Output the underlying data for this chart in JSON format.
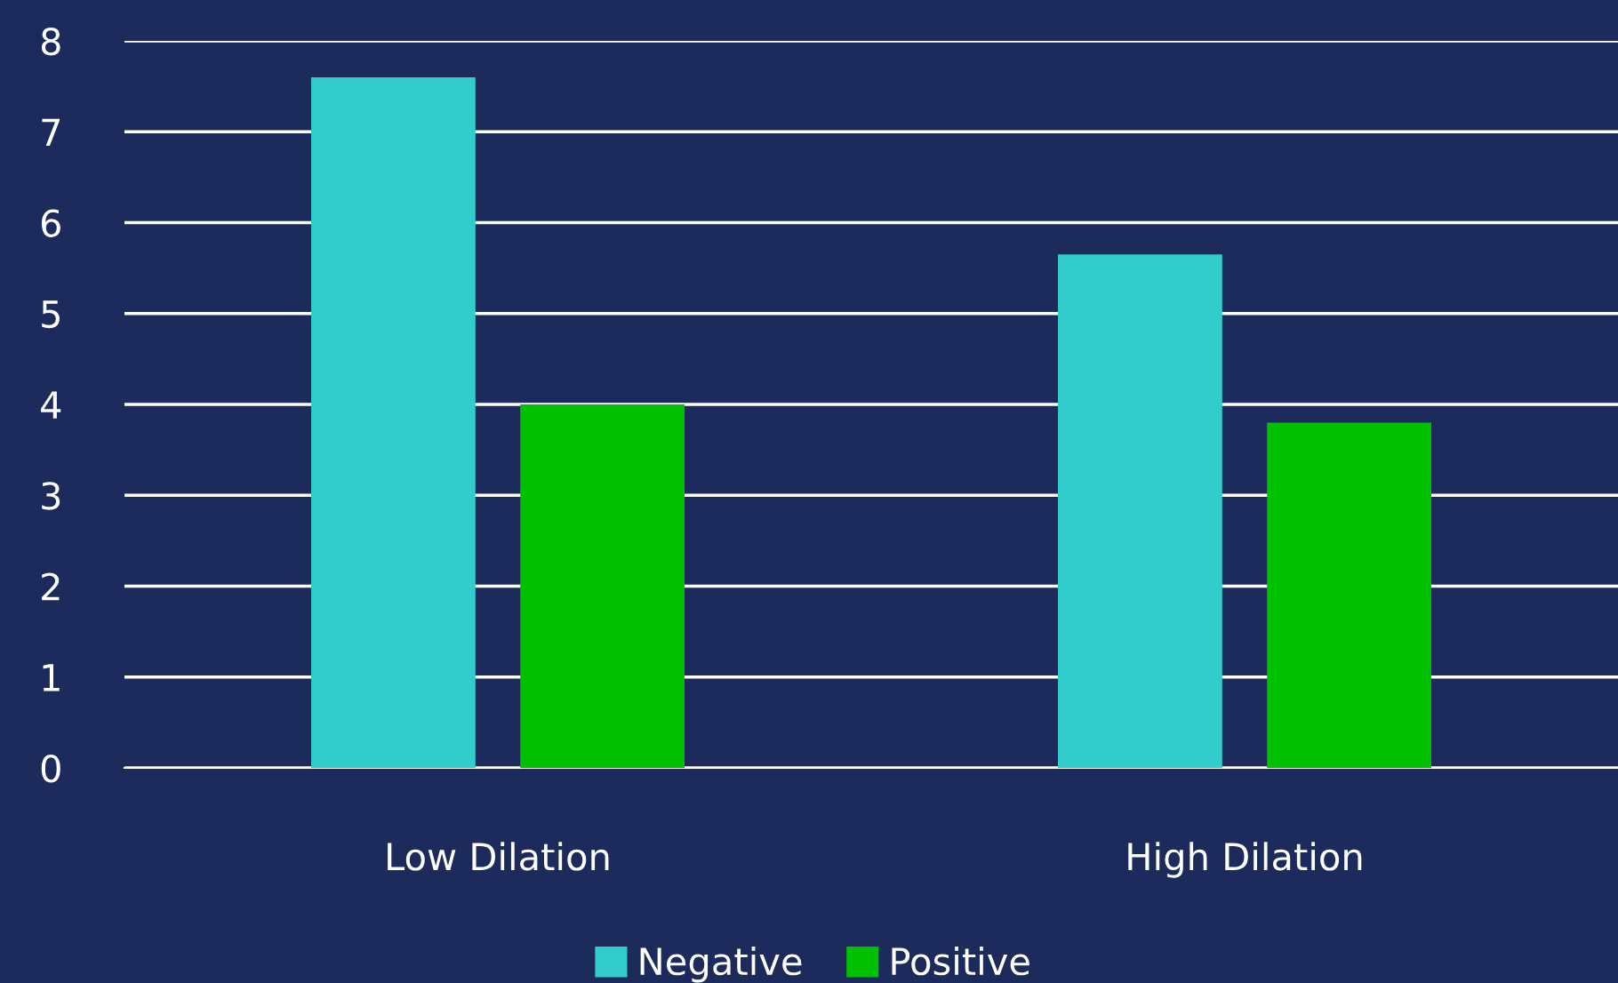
{
  "chart_data": {
    "type": "bar",
    "categories": [
      "Low Dilation",
      "High Dilation"
    ],
    "series": [
      {
        "name": "Negative",
        "color": "#33cccc",
        "values": [
          7.6,
          5.65
        ]
      },
      {
        "name": "Positive",
        "color": "#00c000",
        "values": [
          4.0,
          3.8
        ]
      }
    ],
    "ylim": [
      0,
      8
    ],
    "yticks": [
      0,
      1,
      2,
      3,
      4,
      5,
      6,
      7,
      8
    ],
    "grid": "y",
    "legend": "bottom"
  }
}
